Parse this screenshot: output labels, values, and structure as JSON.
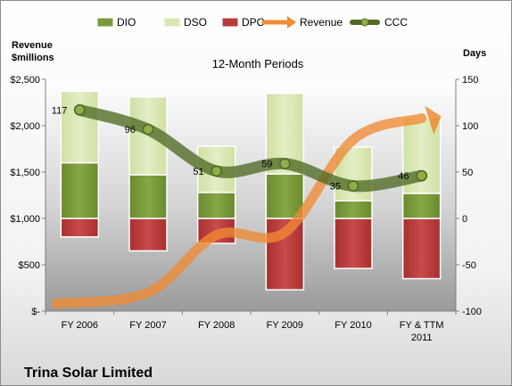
{
  "chart_data": {
    "type": "bar",
    "title": "12-Month Periods",
    "company": "Trina Solar Limited",
    "categories": [
      "FY 2006",
      "FY 2007",
      "FY 2008",
      "FY 2009",
      "FY 2010",
      "FY & TTM 2011"
    ],
    "left_axis": {
      "label_line1": "Revenue",
      "label_line2": "$millions",
      "ylim": [
        0,
        2500
      ],
      "ticks": [
        {
          "value": 2500,
          "label": "$2,500"
        },
        {
          "value": 2000,
          "label": "$2,000"
        },
        {
          "value": 1500,
          "label": "$1,500"
        },
        {
          "value": 1000,
          "label": "$1,000"
        },
        {
          "value": 500,
          "label": "$500"
        },
        {
          "value": 0,
          "label": "$-"
        }
      ]
    },
    "right_axis": {
      "label": "Days",
      "ylim": [
        -100,
        150
      ],
      "ticks": [
        {
          "value": 150,
          "label": "150"
        },
        {
          "value": 100,
          "label": "100"
        },
        {
          "value": 50,
          "label": "50"
        },
        {
          "value": 0,
          "label": "0"
        },
        {
          "value": -50,
          "label": "-50"
        },
        {
          "value": -100,
          "label": "-100"
        }
      ]
    },
    "series": [
      {
        "name": "DIO",
        "axis": "right",
        "kind": "bar",
        "color": "#7a9a3a",
        "values": [
          60,
          47,
          28,
          48,
          19,
          27
        ]
      },
      {
        "name": "DSO",
        "axis": "right",
        "kind": "bar",
        "color": "#d8e8b0",
        "values": [
          77,
          84,
          50,
          87,
          58,
          82
        ]
      },
      {
        "name": "DPO",
        "axis": "right",
        "kind": "bar",
        "color": "#b93a3a",
        "values": [
          20,
          35,
          27,
          77,
          54,
          65
        ]
      },
      {
        "name": "Revenue",
        "axis": "left",
        "kind": "line",
        "color": "#f08a35",
        "values": [
          80,
          200,
          820,
          850,
          1850,
          2080
        ]
      },
      {
        "name": "CCC",
        "axis": "right",
        "kind": "line",
        "color": "#5a7a2a",
        "values": [
          117,
          96,
          51,
          59,
          35,
          46
        ]
      }
    ],
    "ccc_labels": [
      "117",
      "96",
      "51",
      "59",
      "35",
      "46"
    ],
    "legend": {
      "position": "top",
      "items": [
        {
          "name": "DIO",
          "swatch": "bar",
          "color": "#7a9a3a"
        },
        {
          "name": "DSO",
          "swatch": "bar",
          "color": "#d8e8b0"
        },
        {
          "name": "DPO",
          "swatch": "bar",
          "color": "#b93a3a"
        },
        {
          "name": "Revenue",
          "swatch": "arrow",
          "color": "#f08a35"
        },
        {
          "name": "CCC",
          "swatch": "line-marker",
          "color": "#5a7a2a"
        }
      ]
    },
    "grid": false
  }
}
